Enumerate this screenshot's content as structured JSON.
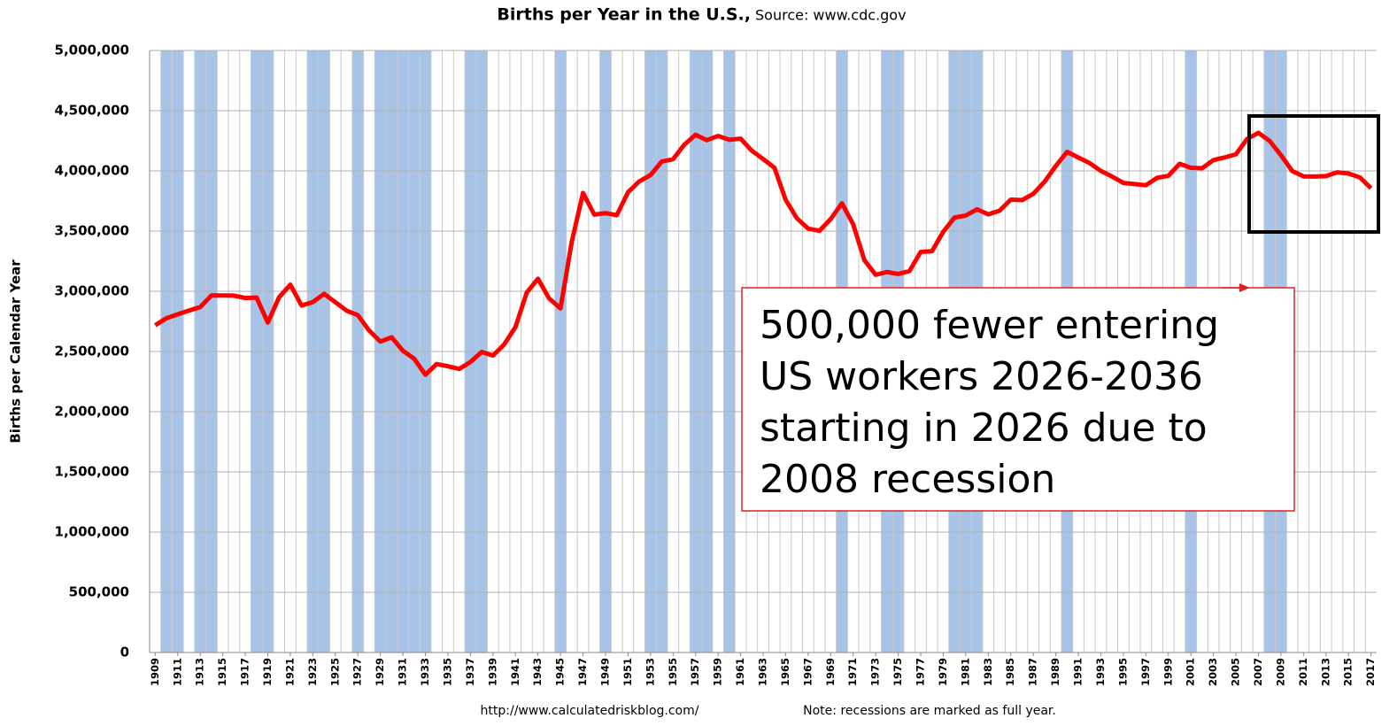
{
  "chart_data": {
    "type": "line",
    "title": "Births per Year in the U.S.,",
    "subtitle": "Source: www.cdc.gov",
    "y_label": "Births per Calendar Year",
    "footer_left": "http://www.calculatedriskblog.com/",
    "footer_right": "Note: recessions are marked as full year.",
    "annotation": [
      "500,000 fewer entering",
      "US workers 2026-2036",
      "starting in 2026 due to",
      "2008 recession"
    ],
    "color": "#ff0000",
    "recession_color": "#a7c4e8",
    "grid": true,
    "x": [
      1909,
      1910,
      1911,
      1912,
      1913,
      1914,
      1915,
      1916,
      1917,
      1918,
      1919,
      1920,
      1921,
      1922,
      1923,
      1924,
      1925,
      1926,
      1927,
      1928,
      1929,
      1930,
      1931,
      1932,
      1933,
      1934,
      1935,
      1936,
      1937,
      1938,
      1939,
      1940,
      1941,
      1942,
      1943,
      1944,
      1945,
      1946,
      1947,
      1948,
      1949,
      1950,
      1951,
      1952,
      1953,
      1954,
      1955,
      1956,
      1957,
      1958,
      1959,
      1960,
      1961,
      1962,
      1963,
      1964,
      1965,
      1966,
      1967,
      1968,
      1969,
      1970,
      1971,
      1972,
      1973,
      1974,
      1975,
      1976,
      1977,
      1978,
      1979,
      1980,
      1981,
      1982,
      1983,
      1984,
      1985,
      1986,
      1987,
      1988,
      1989,
      1990,
      1991,
      1992,
      1993,
      1994,
      1995,
      1996,
      1997,
      1998,
      1999,
      2000,
      2001,
      2002,
      2003,
      2004,
      2005,
      2006,
      2007,
      2008,
      2009,
      2010,
      2011,
      2012,
      2013,
      2014,
      2015,
      2016,
      2017
    ],
    "values": [
      2718000,
      2777000,
      2809000,
      2840000,
      2869000,
      2966000,
      2965000,
      2964000,
      2944000,
      2948000,
      2740000,
      2950000,
      3055000,
      2882000,
      2910000,
      2979000,
      2909000,
      2839000,
      2802000,
      2674000,
      2582000,
      2618000,
      2506000,
      2440000,
      2307000,
      2396000,
      2377000,
      2355000,
      2413000,
      2496000,
      2466000,
      2559000,
      2703000,
      2989000,
      3104000,
      2939000,
      2858000,
      3411000,
      3817000,
      3637000,
      3649000,
      3632000,
      3823000,
      3913000,
      3965000,
      4078000,
      4097000,
      4218000,
      4300000,
      4255000,
      4290000,
      4258000,
      4268000,
      4167000,
      4098000,
      4027000,
      3760000,
      3606000,
      3521000,
      3502000,
      3600000,
      3731000,
      3556000,
      3258000,
      3137000,
      3160000,
      3144000,
      3168000,
      3327000,
      3333000,
      3494000,
      3612000,
      3629000,
      3681000,
      3639000,
      3669000,
      3761000,
      3757000,
      3809000,
      3910000,
      4041000,
      4158000,
      4111000,
      4065000,
      4000000,
      3953000,
      3900000,
      3891000,
      3881000,
      3942000,
      3959000,
      4059000,
      4026000,
      4022000,
      4090000,
      4112000,
      4138000,
      4266000,
      4316000,
      4248000,
      4131000,
      3999000,
      3954000,
      3953000,
      3957000,
      3988000,
      3978000,
      3946000,
      3856000
    ],
    "recessions": [
      [
        1910,
        1911
      ],
      [
        1913,
        1914
      ],
      [
        1918,
        1919
      ],
      [
        1923,
        1924
      ],
      [
        1927,
        1927
      ],
      [
        1929,
        1933
      ],
      [
        1937,
        1938
      ],
      [
        1945,
        1945
      ],
      [
        1949,
        1949
      ],
      [
        1953,
        1954
      ],
      [
        1957,
        1958
      ],
      [
        1960,
        1960
      ],
      [
        1970,
        1970
      ],
      [
        1974,
        1975
      ],
      [
        1980,
        1982
      ],
      [
        1990,
        1990
      ],
      [
        2001,
        2001
      ],
      [
        2008,
        2009
      ]
    ],
    "xlim": [
      1908.5,
      2017.5
    ],
    "xticks": [
      1909,
      1911,
      1913,
      1915,
      1917,
      1919,
      1921,
      1923,
      1925,
      1927,
      1929,
      1931,
      1933,
      1935,
      1937,
      1939,
      1941,
      1943,
      1945,
      1947,
      1949,
      1951,
      1953,
      1955,
      1957,
      1959,
      1961,
      1963,
      1965,
      1967,
      1969,
      1971,
      1973,
      1975,
      1977,
      1979,
      1981,
      1983,
      1985,
      1987,
      1989,
      1991,
      1993,
      1995,
      1997,
      1999,
      2001,
      2003,
      2005,
      2007,
      2009,
      2011,
      2013,
      2015,
      2017
    ],
    "ylim": [
      0,
      5000000
    ],
    "yticks": [
      0,
      {
        "value": 500000,
        "label": "500,000"
      },
      {
        "value": 1000000,
        "label": "1,000,000"
      },
      {
        "value": 1500000,
        "label": "1,500,000"
      },
      {
        "value": 2000000,
        "label": "2,000,000"
      },
      {
        "value": 2500000,
        "label": "2,500,000"
      },
      {
        "value": 3000000,
        "label": "3,000,000"
      },
      {
        "value": 3500000,
        "label": "3,500,000"
      },
      {
        "value": 4000000,
        "label": "4,000,000"
      },
      {
        "value": 4500000,
        "label": "4,500,000"
      },
      {
        "value": 5000000,
        "label": "5,000,000"
      }
    ]
  }
}
